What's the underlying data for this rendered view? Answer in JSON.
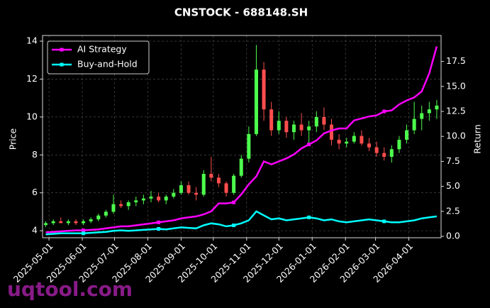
{
  "chart_data": {
    "type": "candlestick",
    "title": "CNSTOCK - 688148.SH",
    "ylabel": "Price",
    "y2label": "Return",
    "watermark": "uqtool.com",
    "x": [
      "2025-04-28",
      "2025-05-05",
      "2025-05-12",
      "2025-05-19",
      "2025-05-26",
      "2025-06-02",
      "2025-06-09",
      "2025-06-16",
      "2025-06-23",
      "2025-06-30",
      "2025-07-07",
      "2025-07-14",
      "2025-07-21",
      "2025-07-28",
      "2025-08-04",
      "2025-08-11",
      "2025-08-18",
      "2025-08-25",
      "2025-09-01",
      "2025-09-08",
      "2025-09-15",
      "2025-09-22",
      "2025-09-29",
      "2025-10-06",
      "2025-10-13",
      "2025-10-20",
      "2025-10-27",
      "2025-11-03",
      "2025-11-10",
      "2025-11-17",
      "2025-11-24",
      "2025-12-01",
      "2025-12-08",
      "2025-12-15",
      "2025-12-22",
      "2025-12-29",
      "2026-01-05",
      "2026-01-12",
      "2026-01-19",
      "2026-01-26",
      "2026-02-02",
      "2026-02-09",
      "2026-02-16",
      "2026-02-23",
      "2026-03-02",
      "2026-03-09",
      "2026-03-16",
      "2026-03-23",
      "2026-03-30",
      "2026-04-06",
      "2026-04-13",
      "2026-04-20",
      "2026-04-27"
    ],
    "open": [
      4.3,
      4.4,
      4.5,
      4.4,
      4.5,
      4.4,
      4.5,
      4.6,
      4.8,
      5.0,
      5.4,
      5.3,
      5.5,
      5.6,
      5.7,
      5.8,
      5.6,
      5.8,
      6.0,
      6.4,
      6.0,
      5.9,
      7.0,
      6.8,
      6.5,
      6.0,
      6.9,
      7.8,
      9.1,
      12.5,
      10.4,
      9.3,
      9.8,
      9.2,
      9.6,
      9.3,
      9.5,
      10.0,
      9.6,
      8.8,
      8.6,
      8.7,
      9.0,
      8.6,
      8.4,
      8.1,
      7.9,
      8.3,
      8.8,
      9.3,
      9.9,
      10.2,
      10.4
    ],
    "high": [
      4.5,
      4.6,
      4.7,
      4.6,
      4.6,
      4.6,
      4.7,
      4.9,
      5.1,
      5.9,
      5.6,
      5.6,
      5.8,
      5.9,
      6.1,
      6.0,
      5.9,
      6.2,
      6.6,
      6.6,
      6.3,
      7.2,
      7.9,
      7.0,
      6.6,
      7.0,
      8.0,
      9.5,
      13.8,
      12.9,
      10.8,
      10.3,
      10.0,
      9.8,
      10.2,
      9.8,
      10.3,
      10.5,
      9.9,
      9.1,
      8.9,
      9.2,
      9.3,
      8.9,
      8.7,
      8.4,
      8.5,
      9.0,
      9.6,
      10.8,
      10.6,
      10.8,
      10.9
    ],
    "low": [
      4.2,
      4.3,
      4.4,
      4.3,
      4.3,
      4.3,
      4.4,
      4.5,
      4.7,
      4.9,
      5.2,
      5.1,
      5.3,
      5.4,
      5.5,
      5.5,
      5.4,
      5.7,
      5.9,
      5.9,
      5.6,
      5.8,
      6.6,
      6.3,
      5.8,
      5.9,
      6.8,
      7.6,
      9.0,
      9.8,
      9.0,
      9.1,
      8.9,
      8.8,
      9.0,
      8.6,
      9.2,
      9.3,
      8.5,
      8.3,
      8.4,
      8.6,
      8.5,
      8.2,
      7.9,
      7.7,
      7.6,
      8.1,
      8.6,
      9.1,
      9.3,
      9.8,
      9.9
    ],
    "close": [
      4.4,
      4.5,
      4.4,
      4.5,
      4.4,
      4.5,
      4.6,
      4.8,
      5.0,
      5.4,
      5.3,
      5.5,
      5.6,
      5.7,
      5.8,
      5.6,
      5.8,
      6.0,
      6.4,
      6.0,
      5.9,
      7.0,
      6.8,
      6.5,
      6.0,
      6.9,
      7.8,
      9.1,
      12.5,
      10.4,
      9.3,
      9.8,
      9.2,
      9.6,
      9.3,
      9.5,
      10.0,
      9.6,
      8.8,
      8.6,
      8.7,
      9.0,
      8.6,
      8.4,
      8.1,
      7.9,
      8.3,
      8.8,
      9.3,
      9.9,
      10.2,
      10.4,
      10.6
    ],
    "up_color": "#4dff4d",
    "down_color": "#ff4d4d",
    "series": [
      {
        "name": "AI Strategy",
        "color": "#ff00ff",
        "axis": "y2",
        "values": [
          0.4,
          0.45,
          0.5,
          0.55,
          0.6,
          0.6,
          0.65,
          0.7,
          0.8,
          0.9,
          1.0,
          1.0,
          1.1,
          1.2,
          1.3,
          1.4,
          1.5,
          1.6,
          1.8,
          1.9,
          2.0,
          2.2,
          2.5,
          3.3,
          3.3,
          3.4,
          4.2,
          5.2,
          6.0,
          7.5,
          7.2,
          7.5,
          7.8,
          8.2,
          8.8,
          9.2,
          9.6,
          10.3,
          10.6,
          10.8,
          10.8,
          11.6,
          11.8,
          12.0,
          12.1,
          12.5,
          12.6,
          13.2,
          13.6,
          13.9,
          14.5,
          16.3,
          19.0
        ]
      },
      {
        "name": "Buy-and-Hold",
        "color": "#00ffff",
        "axis": "y2",
        "values": [
          0.2,
          0.25,
          0.3,
          0.3,
          0.3,
          0.3,
          0.35,
          0.4,
          0.45,
          0.55,
          0.6,
          0.55,
          0.6,
          0.65,
          0.7,
          0.75,
          0.7,
          0.8,
          0.9,
          0.85,
          0.8,
          1.1,
          1.3,
          1.2,
          1.0,
          1.1,
          1.3,
          1.6,
          2.5,
          2.1,
          1.7,
          1.8,
          1.6,
          1.7,
          1.8,
          1.9,
          1.8,
          1.6,
          1.7,
          1.5,
          1.4,
          1.5,
          1.6,
          1.7,
          1.6,
          1.5,
          1.4,
          1.4,
          1.5,
          1.6,
          1.8,
          1.9,
          2.0
        ]
      }
    ],
    "xlim": [
      "2025-04-25",
      "2026-05-01"
    ],
    "xticks": [
      "2025-05-01",
      "2025-06-01",
      "2025-07-01",
      "2025-08-01",
      "2025-09-01",
      "2025-10-01",
      "2025-11-01",
      "2025-12-01",
      "2026-01-01",
      "2026-02-01",
      "2026-03-01",
      "2026-04-01"
    ],
    "ylim": [
      3.63,
      14.3
    ],
    "yticks": [
      4,
      6,
      8,
      10,
      12,
      14
    ],
    "y2lim": [
      -0.14,
      20.1
    ],
    "y2ticks": [
      {
        "value": 0,
        "label": "0.0"
      },
      2.5,
      {
        "value": 5,
        "label": "5.0"
      },
      7.5,
      {
        "value": 10,
        "label": "10.0"
      },
      12.5,
      {
        "value": 15,
        "label": "15.0"
      },
      17.5
    ],
    "grid": true,
    "legend": "upper left"
  }
}
